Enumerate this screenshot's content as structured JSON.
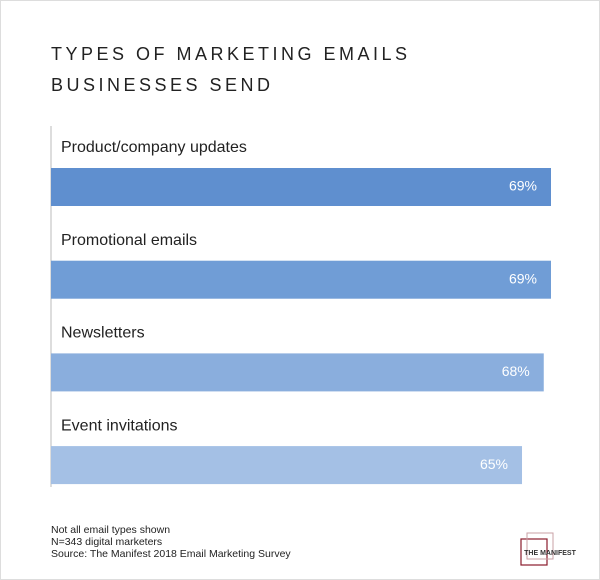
{
  "chart_data": {
    "type": "hbar",
    "title": "TYPES OF MARKETING EMAILS BUSINESSES SEND",
    "categories": [
      "Product/company updates",
      "Promotional emails",
      "Newsletters",
      "Event invitations"
    ],
    "values": [
      69,
      69,
      68,
      65
    ],
    "value_labels": [
      "69%",
      "69%",
      "68%",
      "65%"
    ],
    "colors": [
      "#5f8fcf",
      "#709dd6",
      "#8aaedd",
      "#a4c0e5"
    ],
    "xlim": [
      0,
      69
    ],
    "notes": [
      "Not all email types shown",
      "N=343 digital marketers",
      "Source: The Manifest 2018 Email Marketing Survey"
    ],
    "brand": "THE MANIFEST"
  }
}
